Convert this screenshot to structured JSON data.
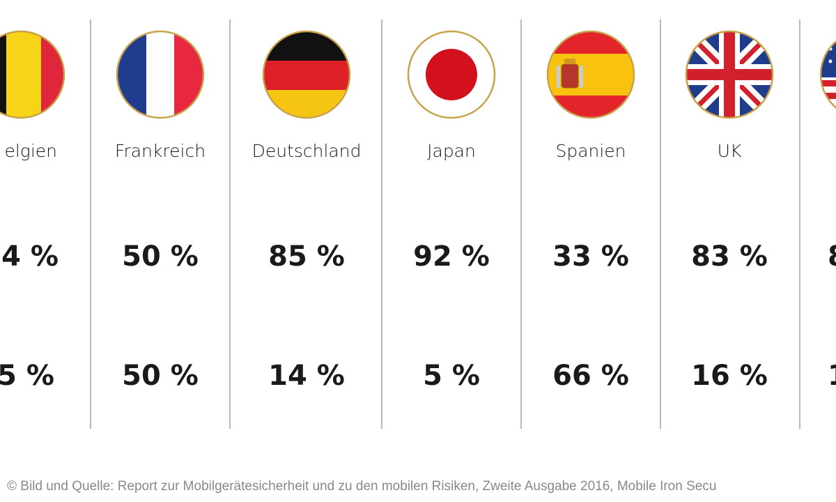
{
  "columns": [
    {
      "name": "elgien",
      "row1": "4 %",
      "row2": "5 %"
    },
    {
      "name": "Frankreich",
      "row1": "50 %",
      "row2": "50 %"
    },
    {
      "name": "Deutschland",
      "row1": "85 %",
      "row2": "14 %"
    },
    {
      "name": "Japan",
      "row1": "92 %",
      "row2": "5 %"
    },
    {
      "name": "Spanien",
      "row1": "33 %",
      "row2": "66 %"
    },
    {
      "name": "UK",
      "row1": "83 %",
      "row2": "16 %"
    },
    {
      "row1": "8",
      "row2": "1"
    }
  ],
  "footer": "© Bild und Quelle: Report zur Mobilgerätesicherheit und zu den mobilen Risiken, Zweite Ausgabe 2016, Mobile Iron Secu"
}
